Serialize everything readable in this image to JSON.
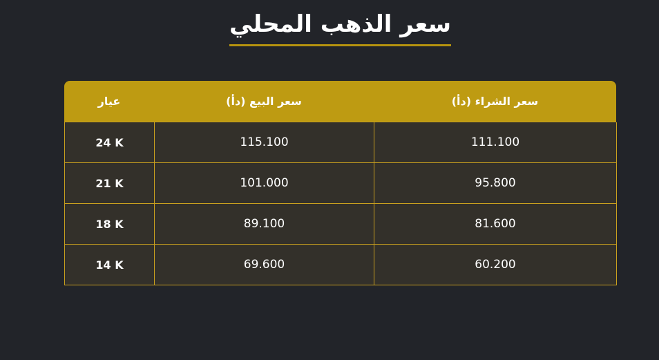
{
  "page": {
    "title": "سعر الذهب المحلي"
  },
  "chart_data": {
    "type": "table",
    "title": "سعر الذهب المحلي",
    "columns": [
      "عيار",
      "سعر البيع (دأ)",
      "سعر الشراء (دأ)"
    ],
    "rows": [
      [
        "24 K",
        "115.100",
        "111.100"
      ],
      [
        "21 K",
        "101.000",
        "95.800"
      ],
      [
        "18 K",
        "89.100",
        "81.600"
      ],
      [
        "14 K",
        "69.600",
        "60.200"
      ]
    ],
    "layout": {
      "direction": "rtl",
      "header_position": "top",
      "column_alignment": "center"
    }
  },
  "colors": {
    "page_background": "#222429",
    "header_gold": "#BE9B12",
    "cell_background": "#33302A",
    "border_gold": "#C9A01E",
    "title_underline": "#B5930E",
    "text": "#FFFFFF"
  }
}
